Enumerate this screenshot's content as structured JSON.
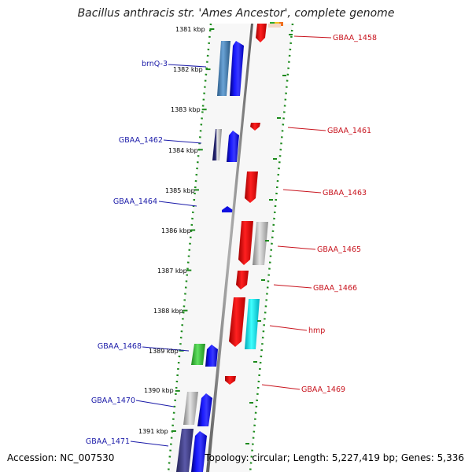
{
  "title": "Bacillus anthracis str. 'Ames Ancestor', complete genome",
  "footer": {
    "accession": "Accession: NC_007530",
    "topology": "Topology: circular; Length: 5,227,419 bp; Genes: 5,336"
  },
  "ruler_labels": [
    "1381 kbp",
    "1382 kbp",
    "1383 kbp",
    "1384 kbp",
    "1385 kbp",
    "1386 kbp",
    "1387 kbp",
    "1388 kbp",
    "1389 kbp",
    "1390 kbp",
    "1391 kbp"
  ],
  "left_genes": [
    {
      "label": "brnQ-3",
      "color": "#1a1aa8"
    },
    {
      "label": "GBAA_1462",
      "color": "#1a1aa8"
    },
    {
      "label": "GBAA_1464",
      "color": "#1a1aa8"
    },
    {
      "label": "GBAA_1468",
      "color": "#1a1aa8"
    },
    {
      "label": "GBAA_1470",
      "color": "#1a1aa8"
    },
    {
      "label": "GBAA_1471",
      "color": "#1a1aa8"
    }
  ],
  "right_genes": [
    {
      "label": "GBAA_1458",
      "color": "#c8141e"
    },
    {
      "label": "GBAA_1461",
      "color": "#c8141e"
    },
    {
      "label": "GBAA_1463",
      "color": "#c8141e"
    },
    {
      "label": "GBAA_1465",
      "color": "#c8141e"
    },
    {
      "label": "GBAA_1466",
      "color": "#c8141e"
    },
    {
      "label": "hmp",
      "color": "#c8141e"
    },
    {
      "label": "GBAA_1469",
      "color": "#c8141e"
    }
  ]
}
